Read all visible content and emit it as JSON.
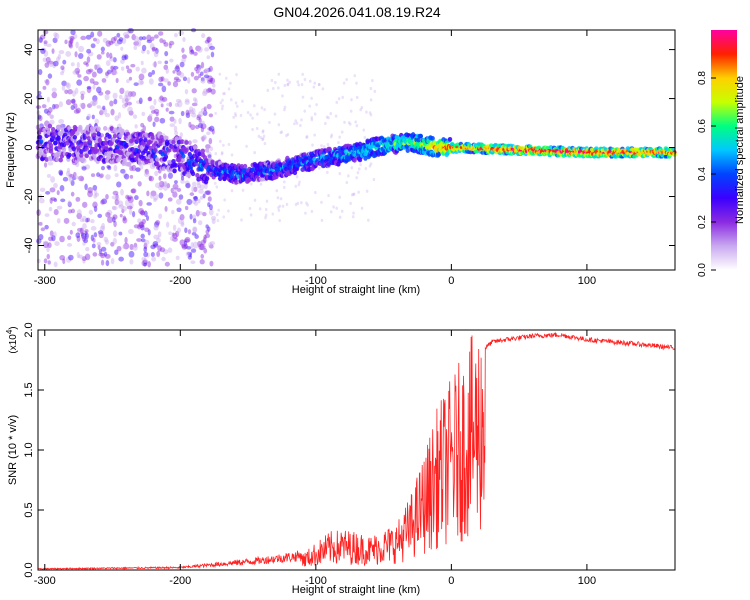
{
  "title": "GN04.2026.041.08.19.R24",
  "chart_data": [
    {
      "type": "heatmap",
      "xlabel": "Height of straight line (km)",
      "ylabel": "Frequency (Hz)",
      "xlim": [
        -305,
        165
      ],
      "ylim": [
        -50,
        48
      ],
      "x_ticks": [
        -300,
        -200,
        -100,
        0,
        100
      ],
      "y_ticks": [
        40,
        20,
        0,
        -20,
        -40
      ],
      "colorbar": {
        "label": "Normalized spectral amplitude",
        "range": [
          0,
          1
        ],
        "ticks": [
          0.0,
          0.2,
          0.4,
          0.6,
          0.8
        ],
        "colors": [
          "#ffffff",
          "#c9a8f0",
          "#8a2be2",
          "#3b00ff",
          "#0044ff",
          "#00c8ff",
          "#00ff80",
          "#c8ff00",
          "#ffd000",
          "#ff2000",
          "#ff00a0"
        ]
      },
      "ridge": {
        "description_points_x": [
          -300,
          -250,
          -200,
          -180,
          -160,
          -130,
          -100,
          -70,
          -50,
          -30,
          -10,
          0,
          50,
          100,
          160
        ],
        "description_points_freq": [
          2,
          1,
          -3,
          -8,
          -11,
          -9,
          -5,
          -2,
          1,
          2,
          0,
          0,
          -1,
          -2,
          -2
        ],
        "amplitude": [
          0.25,
          0.25,
          0.3,
          0.35,
          0.4,
          0.4,
          0.45,
          0.5,
          0.55,
          0.65,
          0.8,
          0.85,
          0.95,
          0.95,
          0.9
        ]
      }
    },
    {
      "type": "line",
      "xlabel": "Height of straight line (km)",
      "ylabel": "SNR (10 * v/v)",
      "y_multiplier": "(x10",
      "y_exponent": "4",
      "y_multiplier_close": ")",
      "xlim": [
        -305,
        165
      ],
      "ylim": [
        0,
        2.0
      ],
      "x_ticks": [
        -300,
        -200,
        -100,
        0,
        100
      ],
      "y_ticks": [
        0.0,
        0.5,
        1.0,
        1.5,
        2.0
      ],
      "series": [
        {
          "name": "SNR",
          "color": "#ff2020",
          "envelope_x": [
            -305,
            -200,
            -170,
            -140,
            -110,
            -100,
            -90,
            -80,
            -70,
            -60,
            -50,
            -40,
            -30,
            -20,
            -10,
            0,
            10,
            20,
            30,
            40,
            60,
            80,
            90,
            100,
            120,
            140,
            165
          ],
          "envelope_y": [
            0.01,
            0.02,
            0.05,
            0.08,
            0.12,
            0.2,
            0.28,
            0.3,
            0.28,
            0.25,
            0.3,
            0.35,
            0.55,
            0.85,
            1.2,
            1.4,
            1.6,
            1.8,
            1.9,
            1.92,
            1.95,
            1.96,
            1.94,
            1.92,
            1.9,
            1.88,
            1.85
          ]
        }
      ]
    }
  ]
}
